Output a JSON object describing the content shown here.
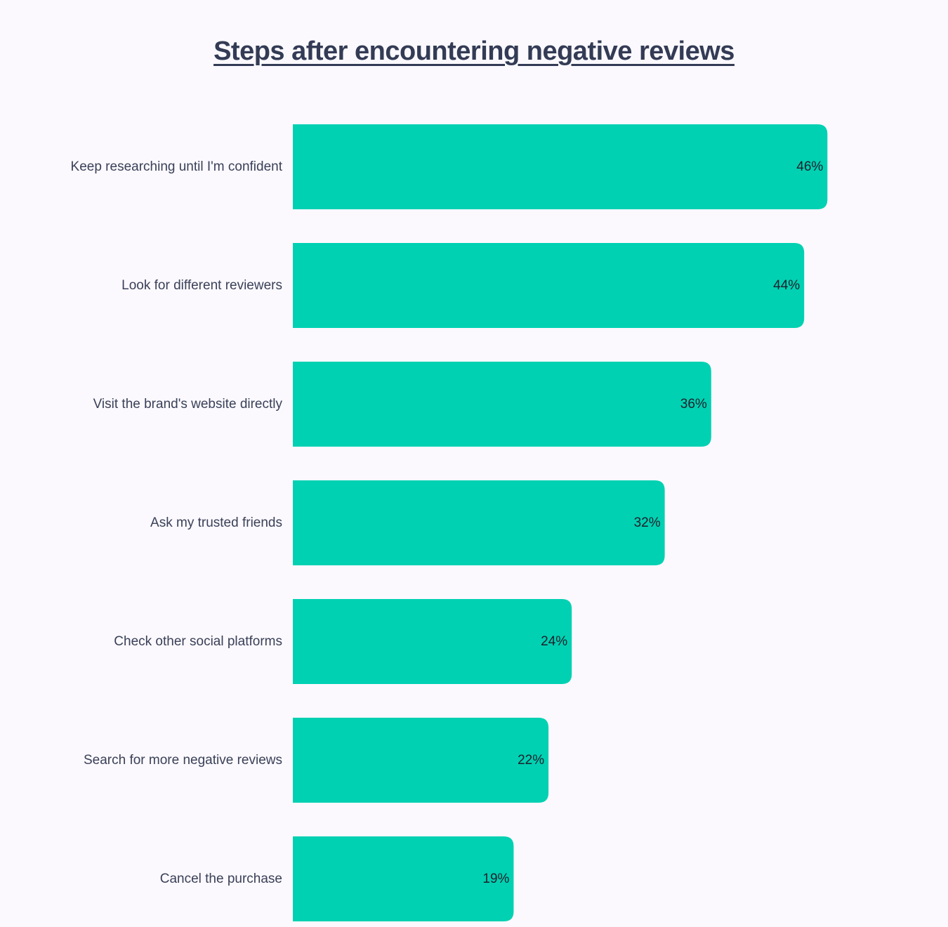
{
  "chart_data": {
    "type": "bar",
    "orientation": "horizontal",
    "title": "Steps after encountering negative reviews",
    "categories": [
      "Keep researching until I'm confident",
      "Look for different reviewers",
      "Visit the brand's website directly",
      "Ask my trusted friends",
      "Check other social platforms",
      "Search for more negative reviews",
      "Cancel the purchase"
    ],
    "values": [
      46,
      44,
      36,
      32,
      24,
      22,
      19
    ],
    "value_labels": [
      "46%",
      "44%",
      "36%",
      "32%",
      "24%",
      "22%",
      "19%"
    ],
    "unit": "%",
    "xlim": [
      0,
      100
    ],
    "grid": false,
    "legend": "none",
    "bar_color": "#00d1b2"
  }
}
